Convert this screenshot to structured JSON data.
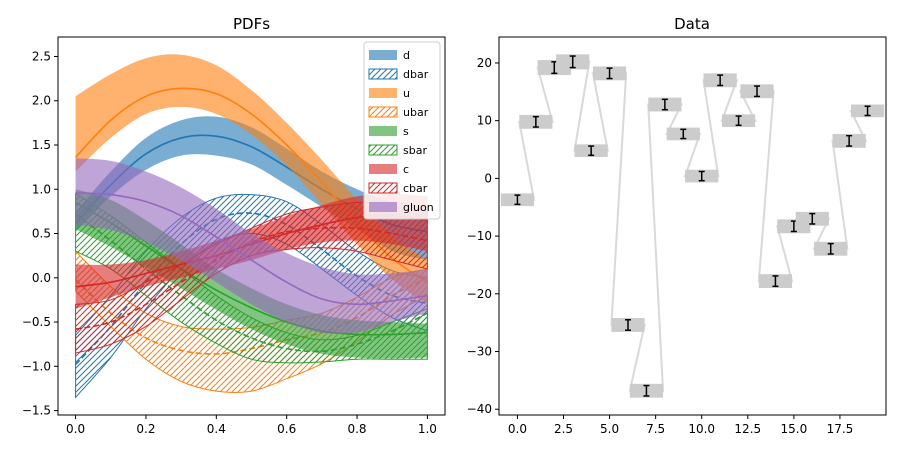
{
  "chart_data": [
    {
      "type": "area",
      "title": "PDFs",
      "xlabel": "",
      "ylabel": "",
      "xlim": [
        -0.05,
        1.05
      ],
      "ylim": [
        -1.55,
        2.72
      ],
      "xticks": [
        "0.0",
        "0.2",
        "0.4",
        "0.6",
        "0.8",
        "1.0"
      ],
      "yticks": [
        "−1.5",
        "−1.0",
        "−0.5",
        "0.0",
        "0.5",
        "1.0",
        "1.5",
        "2.0",
        "2.5"
      ],
      "legend_position": "top-right",
      "x": [
        0.0,
        0.1,
        0.2,
        0.3,
        0.4,
        0.5,
        0.6,
        0.7,
        0.8,
        0.9,
        1.0
      ],
      "series": [
        {
          "name": "d",
          "style": "solid",
          "color": "#1f77b4",
          "center": [
            0.62,
            1.05,
            1.4,
            1.58,
            1.6,
            1.48,
            1.25,
            1.0,
            0.78,
            0.6,
            0.52
          ],
          "lower": [
            0.52,
            0.92,
            1.22,
            1.38,
            1.38,
            1.28,
            1.05,
            0.8,
            0.55,
            0.3,
            0.2
          ],
          "upper": [
            0.74,
            1.2,
            1.58,
            1.78,
            1.82,
            1.7,
            1.46,
            1.2,
            1.0,
            0.85,
            0.8
          ]
        },
        {
          "name": "dbar",
          "style": "hatched",
          "color": "#1f77b4",
          "center": [
            -0.98,
            -0.55,
            -0.05,
            0.38,
            0.66,
            0.73,
            0.6,
            0.32,
            0.02,
            -0.2,
            -0.29
          ],
          "lower": [
            -1.35,
            -0.9,
            -0.35,
            0.1,
            0.4,
            0.5,
            0.38,
            0.1,
            -0.2,
            -0.45,
            -0.6
          ],
          "upper": [
            -0.65,
            -0.2,
            0.3,
            0.68,
            0.9,
            0.94,
            0.86,
            0.6,
            0.3,
            0.08,
            0.0
          ]
        },
        {
          "name": "u",
          "style": "solid",
          "color": "#ff7f0e",
          "center": [
            1.36,
            1.78,
            2.05,
            2.14,
            2.08,
            1.85,
            1.5,
            1.08,
            0.62,
            0.22,
            -0.05
          ],
          "lower": [
            1.2,
            1.58,
            1.85,
            1.93,
            1.85,
            1.62,
            1.27,
            0.83,
            0.38,
            -0.02,
            -0.3
          ],
          "upper": [
            2.05,
            2.3,
            2.48,
            2.52,
            2.4,
            2.12,
            1.75,
            1.33,
            0.88,
            0.47,
            0.2
          ]
        },
        {
          "name": "ubar",
          "style": "hatched",
          "color": "#ff7f0e",
          "center": [
            -0.02,
            -0.4,
            -0.68,
            -0.82,
            -0.86,
            -0.8,
            -0.7,
            -0.62,
            -0.45,
            -0.2,
            0.0
          ],
          "lower": [
            -0.15,
            -0.55,
            -0.92,
            -1.17,
            -1.28,
            -1.28,
            -1.14,
            -0.97,
            -0.72,
            -0.42,
            -0.2
          ],
          "upper": [
            0.3,
            -0.1,
            -0.4,
            -0.55,
            -0.58,
            -0.56,
            -0.48,
            -0.4,
            -0.22,
            0.0,
            0.1
          ]
        },
        {
          "name": "s",
          "style": "solid",
          "color": "#2ca02c",
          "center": [
            0.85,
            0.62,
            0.36,
            0.1,
            -0.14,
            -0.34,
            -0.5,
            -0.6,
            -0.64,
            -0.64,
            -0.62
          ],
          "lower": [
            0.55,
            0.35,
            0.12,
            -0.12,
            -0.36,
            -0.58,
            -0.75,
            -0.86,
            -0.9,
            -0.91,
            -0.9
          ],
          "upper": [
            1.0,
            0.88,
            0.65,
            0.38,
            0.1,
            -0.12,
            -0.3,
            -0.42,
            -0.48,
            -0.5,
            -0.52
          ]
        },
        {
          "name": "sbar",
          "style": "hatched",
          "color": "#2ca02c",
          "center": [
            0.72,
            0.42,
            0.1,
            -0.2,
            -0.48,
            -0.68,
            -0.8,
            -0.83,
            -0.75,
            -0.6,
            -0.4
          ],
          "lower": [
            0.3,
            0.1,
            -0.2,
            -0.5,
            -0.74,
            -0.92,
            -0.96,
            -0.95,
            -0.92,
            -0.92,
            -0.92
          ],
          "upper": [
            0.95,
            0.7,
            0.4,
            0.1,
            -0.2,
            -0.45,
            -0.62,
            -0.7,
            -0.65,
            -0.5,
            -0.35
          ]
        },
        {
          "name": "c",
          "style": "solid",
          "color": "#d62728",
          "center": [
            -0.1,
            -0.05,
            0.05,
            0.15,
            0.25,
            0.38,
            0.5,
            0.6,
            0.68,
            0.7,
            0.65
          ],
          "lower": [
            -0.35,
            -0.22,
            -0.1,
            0.0,
            0.1,
            0.2,
            0.32,
            0.4,
            0.42,
            0.38,
            0.3
          ],
          "upper": [
            0.15,
            0.15,
            0.2,
            0.3,
            0.42,
            0.55,
            0.7,
            0.82,
            0.92,
            0.95,
            0.92
          ]
        },
        {
          "name": "cbar",
          "style": "hatched",
          "color": "#d62728",
          "center": [
            -0.58,
            -0.5,
            -0.3,
            -0.05,
            0.2,
            0.4,
            0.52,
            0.56,
            0.56,
            0.5,
            0.42
          ],
          "lower": [
            -0.85,
            -0.75,
            -0.55,
            -0.25,
            0.05,
            0.25,
            0.32,
            0.34,
            0.3,
            0.2,
            0.1
          ],
          "upper": [
            -0.3,
            -0.25,
            -0.05,
            0.15,
            0.38,
            0.56,
            0.72,
            0.8,
            0.85,
            0.85,
            0.8
          ]
        },
        {
          "name": "gluon",
          "style": "solid",
          "color": "#9467bd",
          "center": [
            0.96,
            0.94,
            0.86,
            0.7,
            0.46,
            0.2,
            -0.05,
            -0.24,
            -0.3,
            -0.26,
            -0.2
          ],
          "lower": [
            0.6,
            0.54,
            0.4,
            0.2,
            -0.05,
            -0.3,
            -0.5,
            -0.62,
            -0.62,
            -0.5,
            -0.4
          ],
          "upper": [
            1.35,
            1.32,
            1.2,
            1.02,
            0.78,
            0.5,
            0.28,
            0.12,
            0.04,
            0.05,
            0.1
          ]
        }
      ]
    },
    {
      "type": "scatter",
      "title": "Data",
      "xlabel": "",
      "ylabel": "",
      "xlim": [
        -1.0,
        20.0
      ],
      "ylim": [
        -41.0,
        24.5
      ],
      "xticks": [
        0,
        2.5,
        5,
        7.5,
        10,
        12.5,
        15,
        17.5
      ],
      "xtick_labels": [
        "0.0",
        "2.5",
        "5.0",
        "7.5",
        "10.0",
        "12.5",
        "15.0",
        "17.5"
      ],
      "yticks": [
        -40,
        -30,
        -20,
        -10,
        0,
        10,
        20
      ],
      "ytick_labels": [
        "−40",
        "−30",
        "−20",
        "−10",
        "0",
        "10",
        "20"
      ],
      "step_color": "#d9d9d9",
      "marker_color": "#000000",
      "x": [
        0,
        1,
        2,
        3,
        4,
        5,
        6,
        7,
        8,
        9,
        10,
        11,
        12,
        13,
        14,
        15,
        16,
        17,
        18,
        19
      ],
      "y": [
        -3.7,
        9.8,
        19.2,
        20.2,
        4.8,
        18.2,
        -25.4,
        -36.8,
        12.8,
        7.7,
        0.4,
        17.0,
        10.0,
        15.1,
        -17.8,
        -8.3,
        -7.0,
        -12.2,
        6.5,
        11.7
      ],
      "yerr": [
        0.8,
        0.9,
        1.0,
        1.0,
        0.8,
        0.9,
        0.9,
        0.9,
        0.9,
        0.8,
        0.8,
        0.9,
        0.8,
        0.9,
        0.9,
        0.9,
        0.9,
        0.9,
        0.9,
        0.8
      ],
      "band_halfwidth": [
        0.9,
        0.9,
        0.9,
        0.9,
        0.9,
        0.9,
        0.9,
        0.9,
        0.9,
        0.9,
        0.9,
        0.9,
        0.9,
        0.9,
        0.9,
        0.9,
        0.9,
        0.9,
        0.9,
        0.9
      ]
    }
  ]
}
